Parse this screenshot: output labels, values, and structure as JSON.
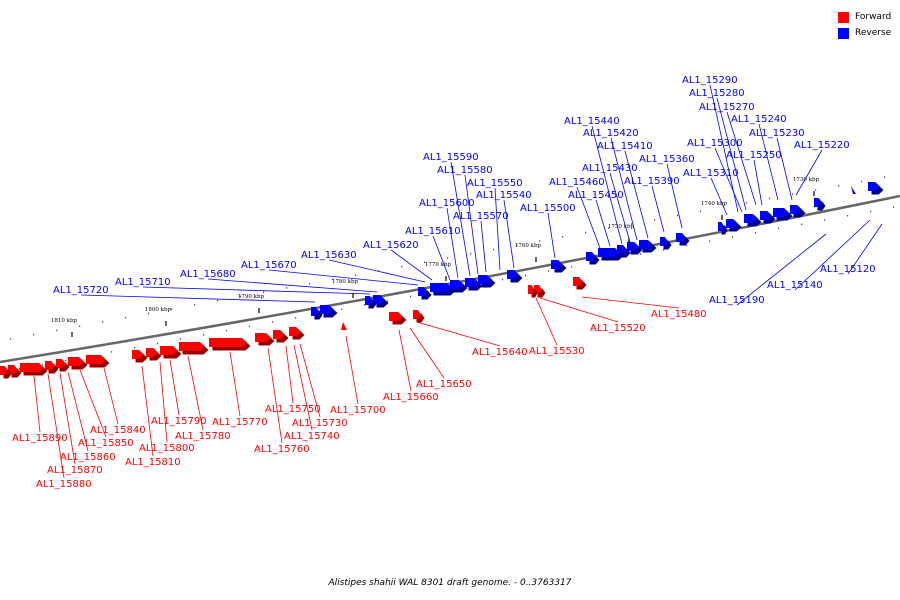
{
  "legend": {
    "forward_label": "Forward",
    "reverse_label": "Reverse",
    "forward_color": "#ff0000",
    "reverse_color": "#0000ff"
  },
  "caption": "Alistipes shahii WAL 8301 draft genome. - 0..3763317",
  "scale": {
    "ticks": [
      "1730 kbp",
      "1740 kbp",
      "1750 kbp",
      "1760 kbp",
      "1770 kbp",
      "1780 kbp",
      "1790 kbp",
      "1800 kbp",
      "1810 kbp"
    ]
  },
  "genes": {
    "reverse": [
      "AL1_15120",
      "AL1_15140",
      "AL1_15190",
      "AL1_15220",
      "AL1_15230",
      "AL1_15240",
      "AL1_15250",
      "AL1_15270",
      "AL1_15280",
      "AL1_15290",
      "AL1_15300",
      "AL1_15310",
      "AL1_15360",
      "AL1_15390",
      "AL1_15410",
      "AL1_15420",
      "AL1_15430",
      "AL1_15440",
      "AL1_15450",
      "AL1_15460",
      "AL1_15500",
      "AL1_15540",
      "AL1_15550",
      "AL1_15570",
      "AL1_15580",
      "AL1_15590",
      "AL1_15600",
      "AL1_15610",
      "AL1_15620",
      "AL1_15630",
      "AL1_15670",
      "AL1_15680",
      "AL1_15710",
      "AL1_15720"
    ],
    "forward": [
      "AL1_15480",
      "AL1_15520",
      "AL1_15530",
      "AL1_15640",
      "AL1_15650",
      "AL1_15660",
      "AL1_15700",
      "AL1_15730",
      "AL1_15740",
      "AL1_15750",
      "AL1_15760",
      "AL1_15770",
      "AL1_15780",
      "AL1_15790",
      "AL1_15800",
      "AL1_15810",
      "AL1_15840",
      "AL1_15850",
      "AL1_15860",
      "AL1_15870",
      "AL1_15880",
      "AL1_15890"
    ]
  }
}
